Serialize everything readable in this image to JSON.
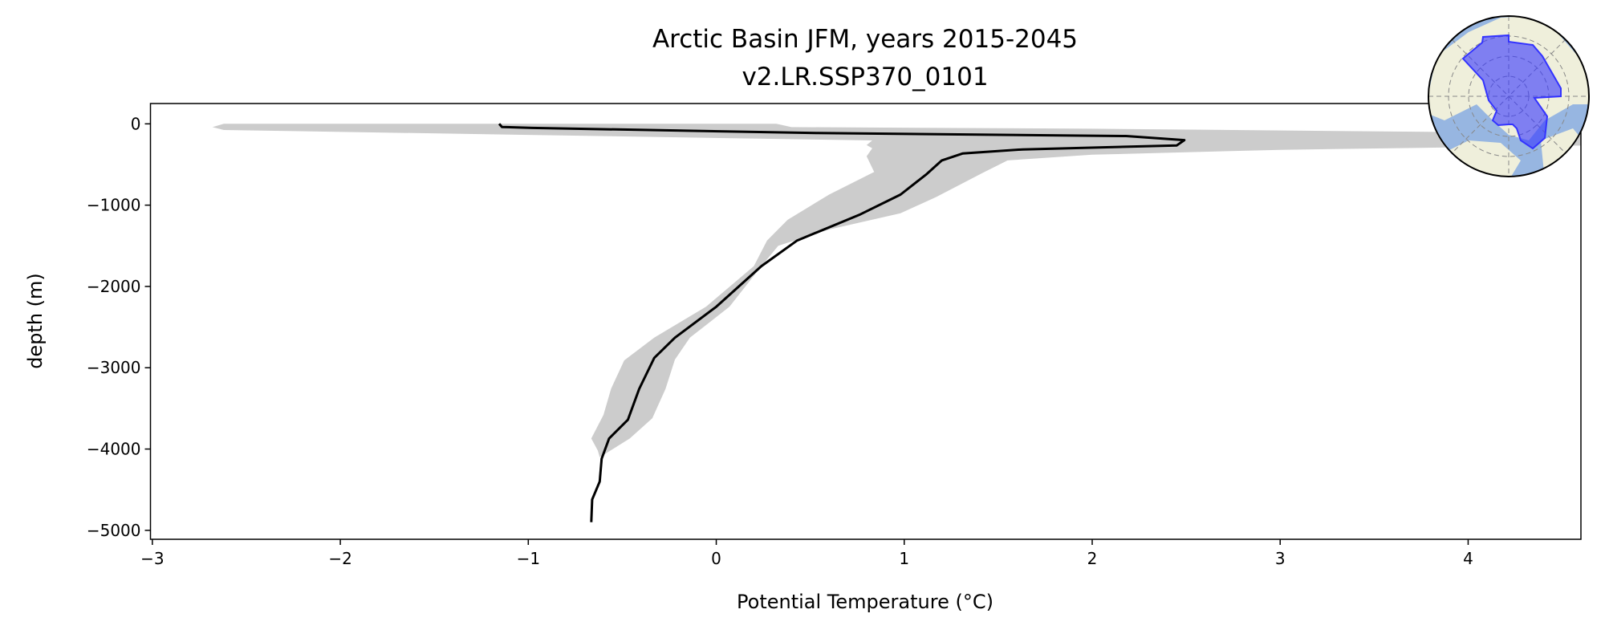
{
  "chart_data": {
    "type": "line",
    "title": "Arctic Basin JFM, years 2015-2045",
    "subtitle": "v2.LR.SSP370_0101",
    "xlabel": "Potential Temperature (°C)",
    "ylabel": "depth (m)",
    "xlim": [
      -3.01,
      4.6
    ],
    "ylim": [
      -5110,
      250
    ],
    "xticks": [
      -3,
      -2,
      -1,
      0,
      1,
      2,
      3,
      4
    ],
    "xtick_labels": [
      "−3",
      "−2",
      "−1",
      "0",
      "1",
      "2",
      "3",
      "4"
    ],
    "yticks": [
      0,
      -1000,
      -2000,
      -3000,
      -4000,
      -5000
    ],
    "ytick_labels": [
      "0",
      "−1000",
      "−2000",
      "−3000",
      "−4000",
      "−5000"
    ],
    "grid": false,
    "colors": {
      "mean": "#000000",
      "range": "#cccccc",
      "region": "#3333ff",
      "land": "#efefdb",
      "ocean": "#97b6e1"
    },
    "series": [
      {
        "name": "mean",
        "points": [
          [
            -1.155,
            0
          ],
          [
            -1.14,
            -38
          ],
          [
            -0.98,
            -50
          ],
          [
            0.54,
            -113
          ],
          [
            2.18,
            -150
          ],
          [
            2.49,
            -200
          ],
          [
            2.45,
            -265
          ],
          [
            1.63,
            -315
          ],
          [
            1.31,
            -365
          ],
          [
            1.2,
            -450
          ],
          [
            1.12,
            -617
          ],
          [
            0.98,
            -870
          ],
          [
            0.76,
            -1120
          ],
          [
            0.43,
            -1435
          ],
          [
            0.24,
            -1750
          ],
          [
            0.0,
            -2250
          ],
          [
            -0.22,
            -2630
          ],
          [
            -0.33,
            -2880
          ],
          [
            -0.41,
            -3260
          ],
          [
            -0.47,
            -3640
          ],
          [
            -0.57,
            -3870
          ],
          [
            -0.61,
            -4120
          ],
          [
            -0.62,
            -4400
          ],
          [
            -0.66,
            -4620
          ],
          [
            -0.665,
            -4900
          ]
        ]
      },
      {
        "name": "range_min",
        "points": [
          [
            -2.62,
            0
          ],
          [
            -2.68,
            -40
          ],
          [
            -2.62,
            -76
          ],
          [
            0.83,
            -204
          ],
          [
            0.8,
            -260
          ],
          [
            0.83,
            -300
          ],
          [
            0.8,
            -400
          ],
          [
            0.84,
            -592
          ],
          [
            0.6,
            -870
          ],
          [
            0.38,
            -1180
          ],
          [
            0.27,
            -1435
          ],
          [
            0.2,
            -1750
          ],
          [
            -0.055,
            -2250
          ],
          [
            -0.33,
            -2630
          ],
          [
            -0.49,
            -2910
          ],
          [
            -0.56,
            -3260
          ],
          [
            -0.6,
            -3580
          ],
          [
            -0.665,
            -3870
          ],
          [
            -0.63,
            -4020
          ],
          [
            -0.62,
            -4100
          ]
        ]
      },
      {
        "name": "range_max",
        "points": [
          [
            0.32,
            0
          ],
          [
            0.4,
            -40
          ],
          [
            2.0,
            -60
          ],
          [
            3.9,
            -100
          ],
          [
            4.8,
            -160
          ],
          [
            4.8,
            -260
          ],
          [
            3.0,
            -320
          ],
          [
            2.0,
            -380
          ],
          [
            1.55,
            -450
          ],
          [
            1.42,
            -600
          ],
          [
            1.17,
            -900
          ],
          [
            0.98,
            -1100
          ],
          [
            0.6,
            -1300
          ],
          [
            0.33,
            -1500
          ],
          [
            0.24,
            -1750
          ],
          [
            0.07,
            -2250
          ],
          [
            -0.14,
            -2630
          ],
          [
            -0.22,
            -2900
          ],
          [
            -0.27,
            -3260
          ],
          [
            -0.34,
            -3620
          ],
          [
            -0.46,
            -3870
          ],
          [
            -0.62,
            -4100
          ]
        ]
      }
    ]
  }
}
